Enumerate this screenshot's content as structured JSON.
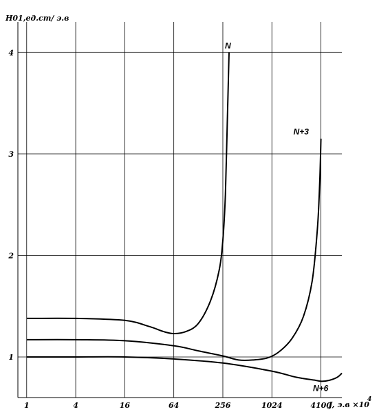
{
  "chart_data": {
    "type": "line",
    "title": "",
    "ylabel": "H01,ед.cm/ э.в",
    "xlabel": "J, э.в ×10",
    "xlabel_exp": "4",
    "x_scale": "log",
    "xlim": [
      0.78,
      7400
    ],
    "ylim": [
      0.6,
      4.3
    ],
    "grid": true,
    "x_ticks": [
      1,
      4,
      16,
      64,
      256,
      1024,
      4100
    ],
    "x_tick_labels": [
      "1",
      "4",
      "16",
      "64",
      "256",
      "1024",
      "4100"
    ],
    "y_ticks": [
      1,
      2,
      3,
      4
    ],
    "y_tick_labels": [
      "1",
      "2",
      "3",
      "4"
    ],
    "series": [
      {
        "name": "N",
        "points": [
          [
            1,
            1.38
          ],
          [
            4,
            1.38
          ],
          [
            16,
            1.36
          ],
          [
            32,
            1.3
          ],
          [
            48,
            1.25
          ],
          [
            64,
            1.23
          ],
          [
            90,
            1.25
          ],
          [
            128,
            1.33
          ],
          [
            180,
            1.55
          ],
          [
            230,
            1.85
          ],
          [
            256,
            2.15
          ],
          [
            275,
            2.6
          ],
          [
            290,
            3.3
          ],
          [
            305,
            4.0
          ]
        ]
      },
      {
        "name": "N+3",
        "points": [
          [
            1,
            1.17
          ],
          [
            4,
            1.17
          ],
          [
            16,
            1.16
          ],
          [
            64,
            1.11
          ],
          [
            128,
            1.06
          ],
          [
            256,
            1.01
          ],
          [
            400,
            0.97
          ],
          [
            600,
            0.97
          ],
          [
            900,
            0.99
          ],
          [
            1250,
            1.05
          ],
          [
            1800,
            1.18
          ],
          [
            2500,
            1.4
          ],
          [
            3200,
            1.75
          ],
          [
            3700,
            2.25
          ],
          [
            3950,
            2.7
          ],
          [
            4100,
            3.15
          ]
        ]
      },
      {
        "name": "N+6",
        "points": [
          [
            1,
            1.0
          ],
          [
            4,
            1.0
          ],
          [
            16,
            1.0
          ],
          [
            64,
            0.98
          ],
          [
            256,
            0.94
          ],
          [
            1024,
            0.86
          ],
          [
            2048,
            0.8
          ],
          [
            3500,
            0.77
          ],
          [
            4200,
            0.76
          ],
          [
            5200,
            0.77
          ],
          [
            6500,
            0.8
          ],
          [
            7400,
            0.84
          ]
        ]
      }
    ]
  }
}
